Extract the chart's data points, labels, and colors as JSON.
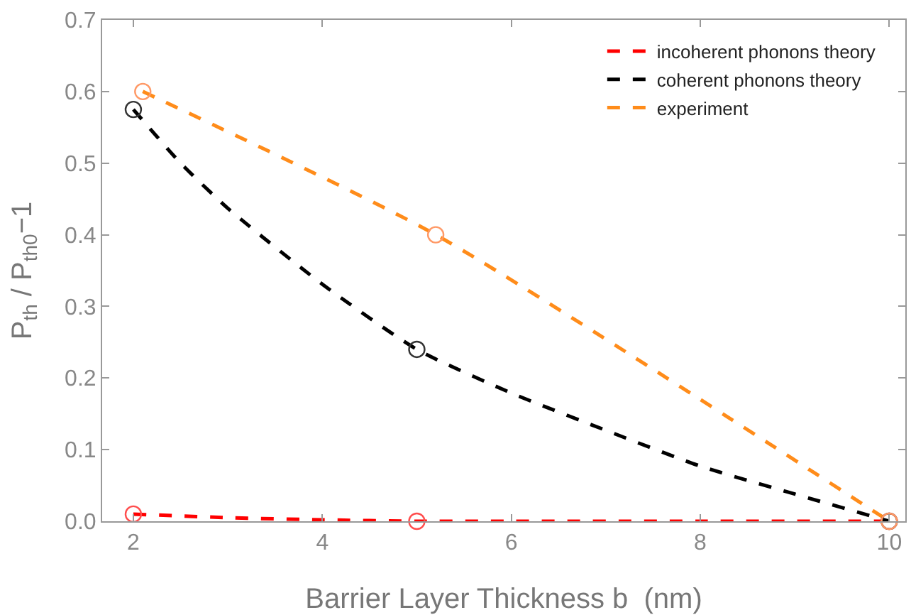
{
  "chart_data": {
    "type": "line",
    "xlabel": "Barrier Layer Thickness b  (nm)",
    "ylabel": "P$_{th}$ / P$_{th0}$−1",
    "xlim": [
      1.67,
      10.17
    ],
    "xticks": [
      2,
      4,
      6,
      8,
      10
    ],
    "ylim": [
      0,
      0.7
    ],
    "yticks": [
      {
        "value": 0,
        "label": "0.0"
      },
      0.1,
      0.2,
      0.3,
      0.4,
      0.5,
      0.6,
      0.7
    ],
    "grid": false,
    "legend": "top right",
    "line_style": "dashed",
    "series": [
      {
        "name": "incoherent phonons theory",
        "color": "#ff0000",
        "marker": "none",
        "x": [
          2,
          3,
          4,
          5,
          6,
          8,
          10
        ],
        "values": [
          0.01,
          0.005,
          0.002,
          0,
          0,
          0,
          0
        ]
      },
      {
        "name": "coherent phonons theory",
        "color": "#000000",
        "marker": "none",
        "x": [
          2,
          2.5,
          3,
          4,
          5,
          6,
          7,
          8,
          9,
          10
        ],
        "values": [
          0.575,
          0.5,
          0.437,
          0.331,
          0.24,
          0.179,
          0.127,
          0.077,
          0.038,
          0
        ]
      },
      {
        "name": "experiment",
        "color": "#ff8c1a",
        "marker": "none",
        "x": [
          2.1,
          5.2,
          10
        ],
        "values": [
          0.6,
          0.4,
          0
        ]
      },
      {
        "color": "#ff4d4d",
        "type": "scatter",
        "marker": "circle",
        "x": [
          2,
          5,
          10
        ],
        "values": [
          0.01,
          0,
          0
        ]
      },
      {
        "color": "#333333",
        "type": "scatter",
        "marker": "circle",
        "x": [
          2,
          5,
          10
        ],
        "values": [
          0.575,
          0.24,
          0
        ]
      },
      {
        "color": "#ff9966",
        "type": "scatter",
        "marker": "circle",
        "x": [
          2.1,
          5.2,
          10
        ],
        "values": [
          0.6,
          0.4,
          0
        ]
      }
    ]
  }
}
